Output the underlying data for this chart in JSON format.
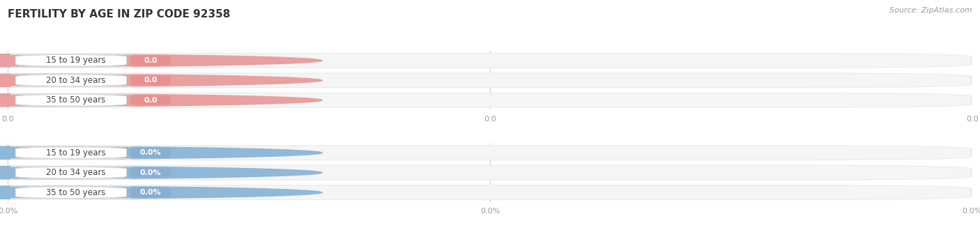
{
  "title": "FERTILITY BY AGE IN ZIP CODE 92358",
  "source": "Source: ZipAtlas.com",
  "sections": [
    {
      "categories": [
        "15 to 19 years",
        "20 to 34 years",
        "35 to 50 years"
      ],
      "values": [
        0.0,
        0.0,
        0.0
      ],
      "bar_color": "#e8a0a0",
      "badge_color": "#e89090",
      "value_suffix": "",
      "tick_labels": [
        "0.0",
        "0.0",
        "0.0"
      ]
    },
    {
      "categories": [
        "15 to 19 years",
        "20 to 34 years",
        "35 to 50 years"
      ],
      "values": [
        0.0,
        0.0,
        0.0
      ],
      "bar_color": "#90b8d8",
      "badge_color": "#88aed0",
      "value_suffix": "%",
      "tick_labels": [
        "0.0%",
        "0.0%",
        "0.0%"
      ]
    }
  ],
  "background_color": "#ffffff",
  "bar_bg_color": "#ebebeb",
  "bar_bg_inner_color": "#f5f5f5",
  "title_fontsize": 11,
  "cat_fontsize": 8.5,
  "val_fontsize": 8,
  "tick_fontsize": 8,
  "source_fontsize": 8
}
